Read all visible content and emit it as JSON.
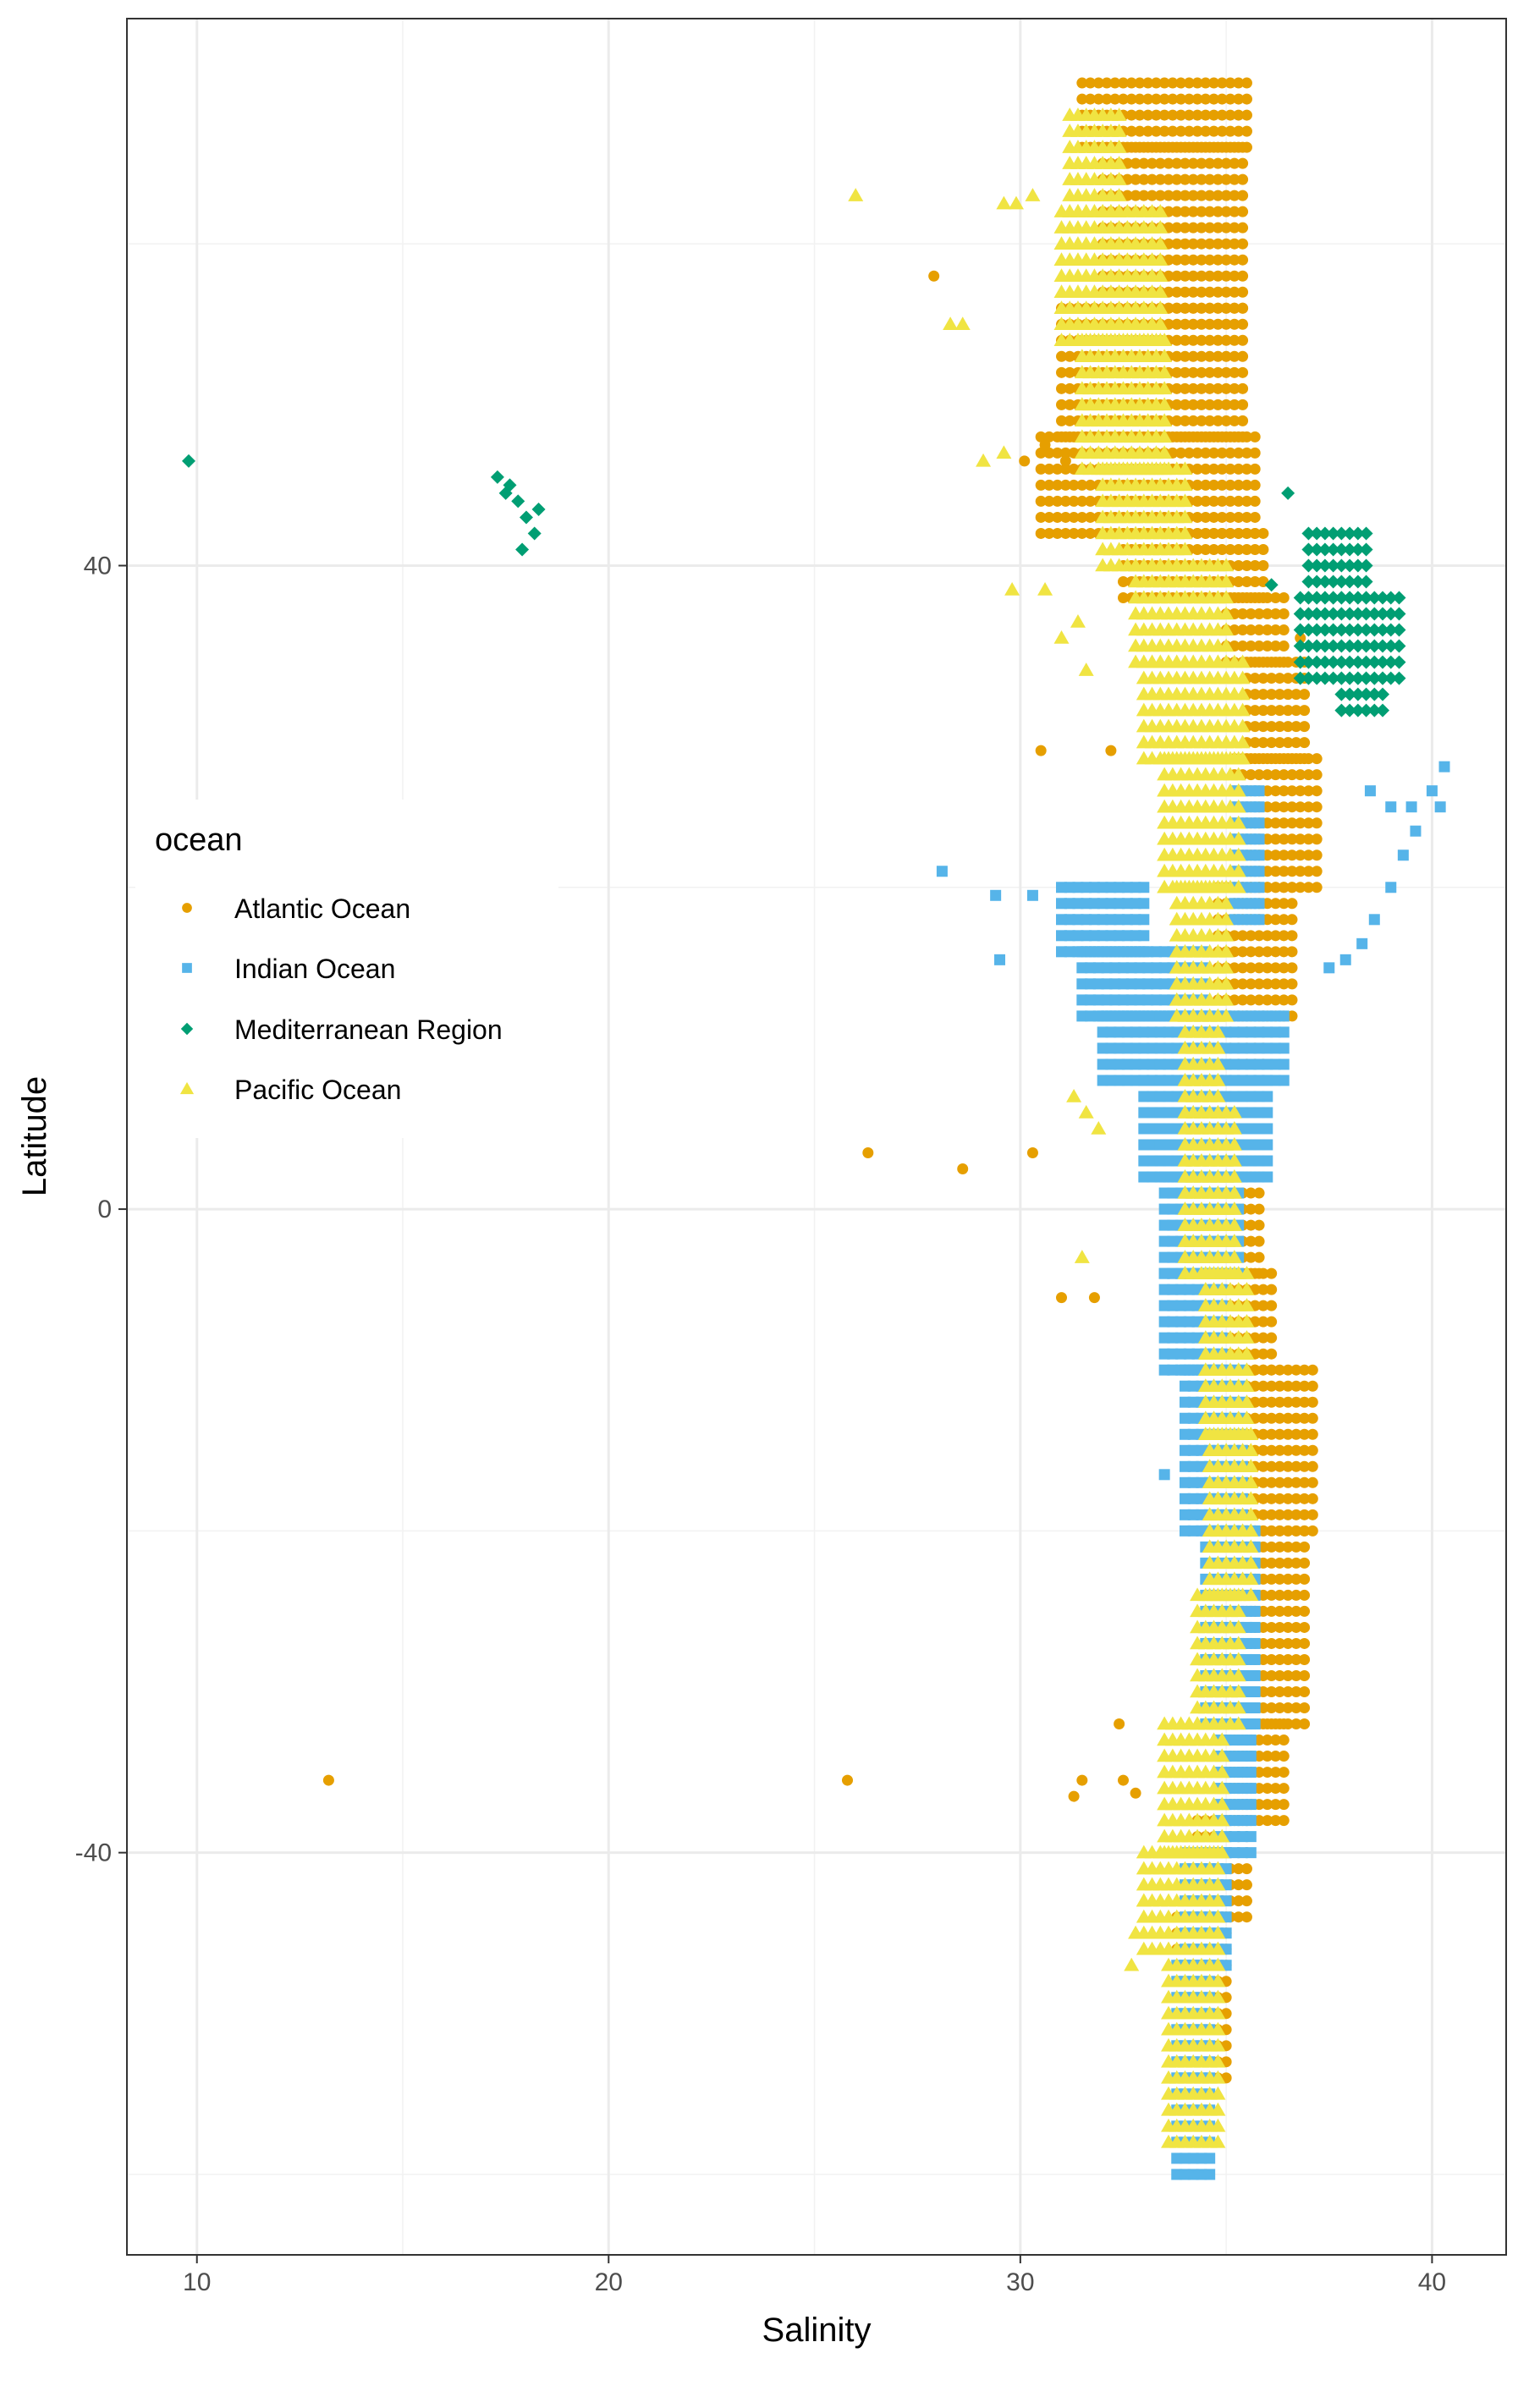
{
  "chart_data": {
    "type": "scatter",
    "title": "",
    "xlabel": "Salinity",
    "ylabel": "Latitude",
    "xlim": [
      8.3,
      41.8
    ],
    "ylim": [
      -65,
      74
    ],
    "x_ticks": [
      10,
      20,
      30,
      40
    ],
    "x_tick_labels": [
      "10",
      "20",
      "30",
      "40"
    ],
    "y_ticks": [
      -40,
      0,
      40
    ],
    "y_tick_labels": [
      "-40",
      "0",
      "40"
    ],
    "x_minor_ticks": [
      15,
      25,
      35
    ],
    "y_minor_ticks": [
      -60,
      -20,
      20,
      60
    ],
    "grid": true,
    "legend": {
      "title": "ocean",
      "position": "left"
    },
    "series": [
      {
        "name": "Atlantic Ocean",
        "color": "#E69F00",
        "shape": "circle",
        "bands": [
          {
            "lat": [
              66,
              70
            ],
            "x": [
              31.5,
              35.5
            ]
          },
          {
            "lat": [
              56,
              66
            ],
            "x": [
              32.0,
              35.5
            ]
          },
          {
            "lat": [
              48,
              56
            ],
            "x": [
              31.0,
              35.5
            ]
          },
          {
            "lat": [
              42,
              48
            ],
            "x": [
              30.5,
              35.8
            ]
          },
          {
            "lat": [
              38,
              42
            ],
            "x": [
              32.5,
              36.0
            ]
          },
          {
            "lat": [
              34,
              38
            ],
            "x": [
              35.0,
              36.5
            ]
          },
          {
            "lat": [
              28,
              34
            ],
            "x": [
              35.5,
              37.0
            ]
          },
          {
            "lat": [
              20,
              28
            ],
            "x": [
              35.2,
              37.3
            ]
          },
          {
            "lat": [
              12,
              20
            ],
            "x": [
              34.8,
              36.6
            ]
          },
          {
            "lat": [
              4,
              12
            ],
            "x": [
              34.3,
              36.0
            ]
          },
          {
            "lat": [
              -4,
              4
            ],
            "x": [
              34.0,
              35.8
            ]
          },
          {
            "lat": [
              -10,
              -4
            ],
            "x": [
              34.5,
              36.2
            ]
          },
          {
            "lat": [
              -20,
              -10
            ],
            "x": [
              35.3,
              37.2
            ]
          },
          {
            "lat": [
              -32,
              -20
            ],
            "x": [
              35.5,
              37.0
            ]
          },
          {
            "lat": [
              -38,
              -32
            ],
            "x": [
              35.0,
              36.5
            ]
          },
          {
            "lat": [
              -44,
              -38
            ],
            "x": [
              34.3,
              35.5
            ]
          },
          {
            "lat": [
              -54,
              -44
            ],
            "x": [
              33.8,
              35.0
            ]
          }
        ],
        "points": [
          [
            13.2,
            -35.5
          ],
          [
            25.8,
            -35.5
          ],
          [
            26.3,
            3.5
          ],
          [
            28.6,
            2.5
          ],
          [
            30.3,
            3.5
          ],
          [
            27.9,
            58
          ],
          [
            30.5,
            28.5
          ],
          [
            32.2,
            28.5
          ],
          [
            31.0,
            -5.5
          ],
          [
            31.8,
            -5.5
          ],
          [
            31.3,
            -36.5
          ],
          [
            31.5,
            -35.5
          ],
          [
            32.4,
            -32
          ],
          [
            32.5,
            -35.5
          ],
          [
            32.8,
            -36.3
          ],
          [
            30.1,
            46.5
          ],
          [
            30.6,
            47.5
          ],
          [
            31.1,
            46.5
          ],
          [
            36.8,
            35.5
          ]
        ]
      },
      {
        "name": "Indian Ocean",
        "color": "#56B4E9",
        "shape": "square",
        "bands": [
          {
            "lat": [
              16,
              20
            ],
            "x": [
              31.0,
              33.0
            ]
          },
          {
            "lat": [
              12,
              16
            ],
            "x": [
              31.5,
              34.5
            ]
          },
          {
            "lat": [
              8,
              12
            ],
            "x": [
              32.0,
              36.5
            ]
          },
          {
            "lat": [
              2,
              8
            ],
            "x": [
              33.0,
              36.0
            ]
          },
          {
            "lat": [
              -4,
              2
            ],
            "x": [
              33.5,
              35.3
            ]
          },
          {
            "lat": [
              -10,
              -4
            ],
            "x": [
              33.5,
              35.0
            ]
          },
          {
            "lat": [
              -20,
              -10
            ],
            "x": [
              34.0,
              35.5
            ]
          },
          {
            "lat": [
              -32,
              -20
            ],
            "x": [
              34.5,
              35.8
            ]
          },
          {
            "lat": [
              -40,
              -32
            ],
            "x": [
              34.8,
              35.6
            ]
          },
          {
            "lat": [
              -47,
              -40
            ],
            "x": [
              34.0,
              35.0
            ]
          },
          {
            "lat": [
              -60,
              -47
            ],
            "x": [
              33.8,
              34.6
            ]
          },
          {
            "lat": [
              18,
              26
            ],
            "x": [
              35.2,
              35.9
            ]
          }
        ],
        "points": [
          [
            28.1,
            21
          ],
          [
            29.4,
            19.5
          ],
          [
            30.3,
            19.5
          ],
          [
            29.5,
            15.5
          ],
          [
            33.5,
            -16.5
          ],
          [
            37.5,
            15
          ],
          [
            37.9,
            15.5
          ],
          [
            38.3,
            16.5
          ],
          [
            38.6,
            18
          ],
          [
            39.0,
            20
          ],
          [
            39.3,
            22
          ],
          [
            39.6,
            23.5
          ],
          [
            40.0,
            26
          ],
          [
            40.3,
            27.5
          ],
          [
            38.5,
            26
          ],
          [
            39.0,
            25
          ],
          [
            39.5,
            25
          ],
          [
            40.2,
            25
          ]
        ]
      },
      {
        "name": "Mediterranean Region",
        "color": "#009E73",
        "shape": "diamond",
        "bands": [
          {
            "lat": [
              38,
              42
            ],
            "x": [
              37.0,
              38.5
            ]
          },
          {
            "lat": [
              33,
              38
            ],
            "x": [
              36.8,
              39.3
            ]
          },
          {
            "lat": [
              31,
              33
            ],
            "x": [
              37.8,
              38.8
            ]
          }
        ],
        "points": [
          [
            9.8,
            46.5
          ],
          [
            17.3,
            45.5
          ],
          [
            17.6,
            45
          ],
          [
            17.8,
            44
          ],
          [
            18.0,
            43
          ],
          [
            18.2,
            42
          ],
          [
            17.9,
            41
          ],
          [
            17.5,
            44.5
          ],
          [
            18.3,
            43.5
          ],
          [
            36.5,
            44.5
          ],
          [
            36.1,
            38.8
          ]
        ]
      },
      {
        "name": "Pacific Ocean",
        "color": "#F0E442",
        "shape": "triangle",
        "bands": [
          {
            "lat": [
              62,
              68
            ],
            "x": [
              31.2,
              32.5
            ]
          },
          {
            "lat": [
              54,
              62
            ],
            "x": [
              31.0,
              33.5
            ]
          },
          {
            "lat": [
              46,
              54
            ],
            "x": [
              31.5,
              33.5
            ]
          },
          {
            "lat": [
              40,
              46
            ],
            "x": [
              32.0,
              34.0
            ]
          },
          {
            "lat": [
              34,
              40
            ],
            "x": [
              32.8,
              35.0
            ]
          },
          {
            "lat": [
              28,
              34
            ],
            "x": [
              33.0,
              35.5
            ]
          },
          {
            "lat": [
              20,
              28
            ],
            "x": [
              33.5,
              35.3
            ]
          },
          {
            "lat": [
              12,
              20
            ],
            "x": [
              33.8,
              35.0
            ]
          },
          {
            "lat": [
              6,
              12
            ],
            "x": [
              34.0,
              34.8
            ]
          },
          {
            "lat": [
              -4,
              6
            ],
            "x": [
              34.0,
              35.2
            ]
          },
          {
            "lat": [
              -14,
              -4
            ],
            "x": [
              34.5,
              35.5
            ]
          },
          {
            "lat": [
              -24,
              -14
            ],
            "x": [
              34.6,
              35.6
            ]
          },
          {
            "lat": [
              -32,
              -24
            ],
            "x": [
              34.3,
              35.3
            ]
          },
          {
            "lat": [
              -40,
              -32
            ],
            "x": [
              33.5,
              35.0
            ]
          },
          {
            "lat": [
              -46,
              -40
            ],
            "x": [
              33.0,
              34.8
            ]
          },
          {
            "lat": [
              -58,
              -46
            ],
            "x": [
              33.6,
              34.8
            ]
          }
        ],
        "points": [
          [
            26.0,
            63
          ],
          [
            28.3,
            55
          ],
          [
            28.6,
            55
          ],
          [
            29.9,
            62.5
          ],
          [
            29.6,
            62.5
          ],
          [
            30.3,
            63
          ],
          [
            29.1,
            46.5
          ],
          [
            29.6,
            47
          ],
          [
            29.8,
            38.5
          ],
          [
            30.6,
            38.5
          ],
          [
            31.0,
            35.5
          ],
          [
            31.4,
            36.5
          ],
          [
            31.6,
            33.5
          ],
          [
            31.3,
            7
          ],
          [
            31.6,
            6
          ],
          [
            31.9,
            5
          ],
          [
            31.5,
            -3
          ],
          [
            33.0,
            -43
          ],
          [
            32.8,
            -45
          ],
          [
            32.7,
            -47
          ]
        ]
      }
    ]
  }
}
